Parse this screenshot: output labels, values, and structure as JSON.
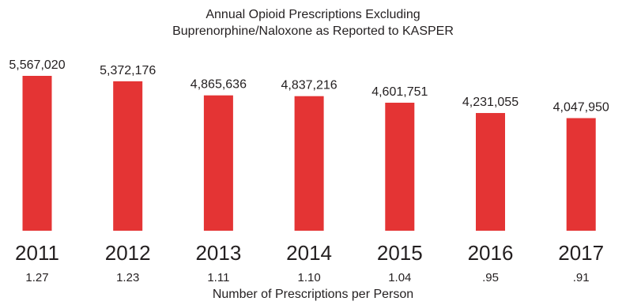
{
  "chart_data": {
    "type": "bar",
    "title": [
      "Annual Opioid Prescriptions Excluding",
      "Buprenorphine/Naloxone as Reported to KASPER"
    ],
    "categories": [
      "2011",
      "2012",
      "2013",
      "2014",
      "2015",
      "2016",
      "2017"
    ],
    "values": [
      5567020,
      5372176,
      4865636,
      4837216,
      4601751,
      4231055,
      4047950
    ],
    "value_labels": [
      "5,567,020",
      "5,372,176",
      "4,865,636",
      "4,837,216",
      "4,601,751",
      "4,231,055",
      "4,047,950"
    ],
    "per_person": [
      ".",
      ".",
      ".",
      ".",
      ".",
      ".",
      "."
    ],
    "per_person_labels": [
      "1.27",
      "1.23",
      "1.11",
      "1.10",
      "1.04",
      ".95",
      ".91"
    ],
    "per_person_title": "Number of Prescriptions per Person",
    "bar_color": "#e43434",
    "ylim": [
      0,
      5567020
    ]
  }
}
